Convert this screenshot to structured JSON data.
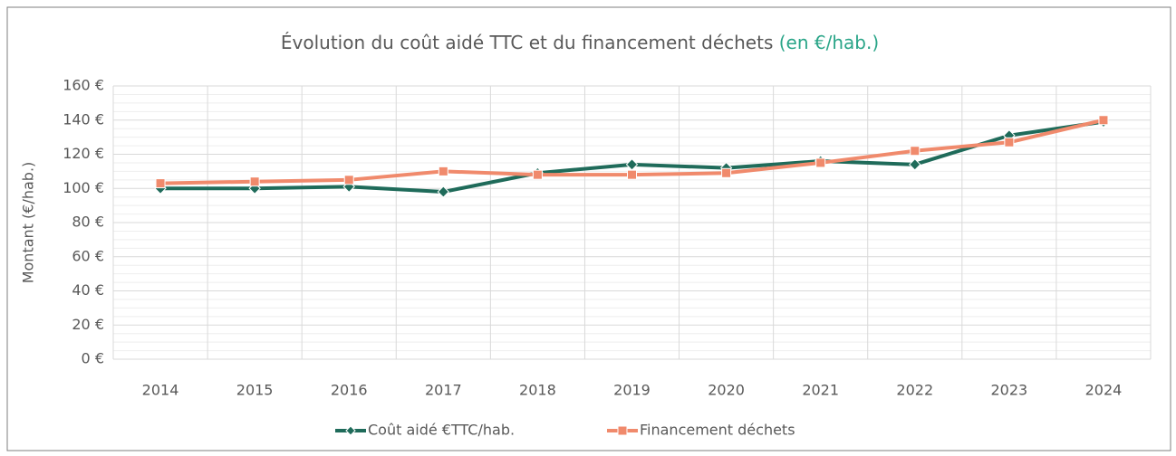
{
  "chart_data": {
    "type": "line",
    "title": "Évolution du coût aidé TTC et du financement déchets",
    "title_note": "(en €/hab.)",
    "title_note_color": "#2aa588",
    "ylabel": "Montant (€/hab.)",
    "categories": [
      "2014",
      "2015",
      "2016",
      "2017",
      "2018",
      "2019",
      "2020",
      "2021",
      "2022",
      "2023",
      "2024"
    ],
    "series": [
      {
        "name": "Coût aidé €TTC/hab.",
        "color": "#1f6b5a",
        "marker": "diamond",
        "values": [
          100,
          100,
          101,
          98,
          109,
          114,
          112,
          116,
          114,
          131,
          139
        ]
      },
      {
        "name": "Financement déchets",
        "color": "#f08a6c",
        "marker": "square",
        "values": [
          103,
          104,
          105,
          110,
          108,
          108,
          109,
          115,
          122,
          127,
          140
        ]
      }
    ],
    "ylim": [
      0,
      160
    ],
    "yticks": [
      {
        "value": 0,
        "label": "0 €"
      },
      {
        "value": 20,
        "label": "20 €"
      },
      {
        "value": 40,
        "label": "40 €"
      },
      {
        "value": 60,
        "label": "60 €"
      },
      {
        "value": 80,
        "label": "80 €"
      },
      {
        "value": 100,
        "label": "100 €"
      },
      {
        "value": 120,
        "label": "120 €"
      },
      {
        "value": 140,
        "label": "140 €"
      },
      {
        "value": 160,
        "label": "160 €"
      }
    ],
    "grid": true,
    "legend": "bottom"
  }
}
